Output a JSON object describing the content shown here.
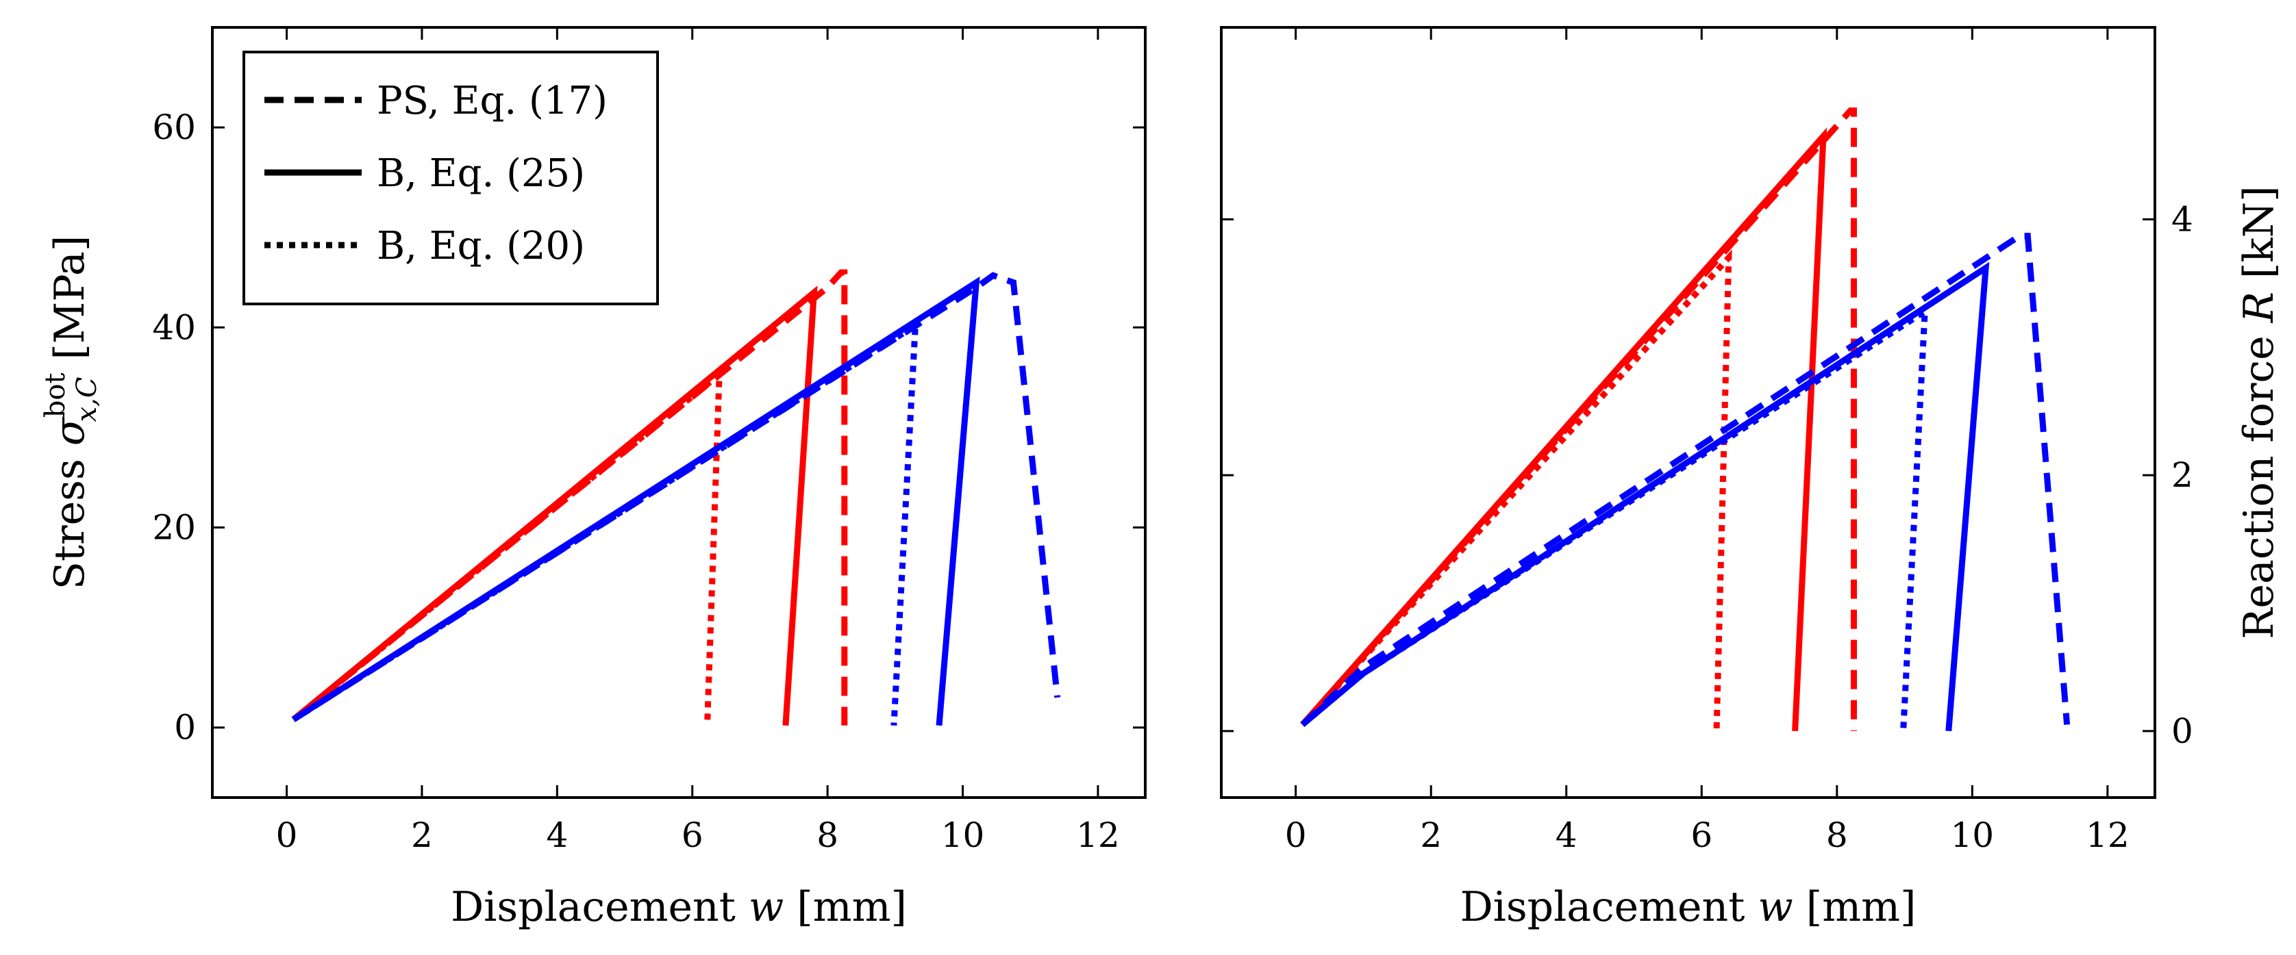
{
  "chart_data": [
    {
      "type": "line",
      "panel": "left",
      "xlabel": "Displacement w [mm]",
      "ylabel": "Stress σ_{x,C}^{bot} [MPa]",
      "ylabel_parts": {
        "prefix": "Stress ",
        "symbol": "σ",
        "sub": "x,C",
        "sup": "bot",
        "suffix": " [MPa]"
      },
      "xlabel_parts": {
        "prefix": "Displacement ",
        "symbol": "w",
        "suffix": " [mm]"
      },
      "xlim": [
        -1.1,
        12.7
      ],
      "ylim": [
        -7,
        70
      ],
      "xticks": [
        0,
        2,
        4,
        6,
        8,
        10,
        12
      ],
      "yticks": [
        0,
        20,
        40,
        60
      ],
      "legend": {
        "position": "top-left",
        "entries": [
          {
            "label": "PS, Eq. (17)",
            "style": "dashed"
          },
          {
            "label": "B, Eq. (25)",
            "style": "solid"
          },
          {
            "label": "B, Eq. (20)",
            "style": "dotted"
          }
        ]
      },
      "series": [
        {
          "name": "PS, Eq. (17) red",
          "color": "#ff0000",
          "style": "dashed",
          "points": [
            [
              0.1,
              0.8
            ],
            [
              8.0,
              44.0
            ],
            [
              8.2,
              45.5
            ],
            [
              8.25,
              45.5
            ],
            [
              8.25,
              0.2
            ]
          ]
        },
        {
          "name": "B, Eq. (25) red",
          "color": "#ff0000",
          "style": "solid",
          "points": [
            [
              0.1,
              0.8
            ],
            [
              7.8,
              43.5
            ],
            [
              7.38,
              0.2
            ]
          ]
        },
        {
          "name": "B, Eq. (20) red",
          "color": "#ff0000",
          "style": "dotted",
          "points": [
            [
              0.1,
              0.8
            ],
            [
              6.4,
              35.3
            ],
            [
              6.22,
              0.2
            ]
          ]
        },
        {
          "name": "PS, Eq. (17) blue",
          "color": "#0000ff",
          "style": "dashed",
          "points": [
            [
              0.1,
              0.8
            ],
            [
              10.2,
              44.0
            ],
            [
              10.45,
              45.2
            ],
            [
              10.75,
              44.5
            ],
            [
              11.4,
              3.0
            ]
          ]
        },
        {
          "name": "B, Eq. (25) blue",
          "color": "#0000ff",
          "style": "solid",
          "points": [
            [
              0.1,
              0.8
            ],
            [
              10.2,
              44.5
            ],
            [
              9.65,
              0.2
            ]
          ]
        },
        {
          "name": "B, Eq. (20) blue",
          "color": "#0000ff",
          "style": "dotted",
          "points": [
            [
              0.1,
              0.8
            ],
            [
              9.3,
              40.2
            ],
            [
              8.98,
              0.2
            ]
          ]
        }
      ]
    },
    {
      "type": "line",
      "panel": "right",
      "xlabel": "Displacement w [mm]",
      "ylabel": "Reaction force R [kN]",
      "ylabel_parts": {
        "prefix": "Reaction force ",
        "symbol": "R",
        "suffix": " [kN]"
      },
      "xlabel_parts": {
        "prefix": "Displacement ",
        "symbol": "w",
        "suffix": " [mm]"
      },
      "y_axis_side": "right",
      "xlim": [
        -1.1,
        12.7
      ],
      "ylim": [
        -0.52,
        5.5
      ],
      "xticks": [
        0,
        2,
        4,
        6,
        8,
        10,
        12
      ],
      "yticks": [
        0,
        2,
        4
      ],
      "series": [
        {
          "name": "PS, Eq. (17) red",
          "color": "#ff0000",
          "style": "dashed",
          "points": [
            [
              0.1,
              0.05
            ],
            [
              8.2,
              4.85
            ],
            [
              8.25,
              4.85
            ],
            [
              8.25,
              0.0
            ]
          ]
        },
        {
          "name": "B, Eq. (25) red",
          "color": "#ff0000",
          "style": "solid",
          "points": [
            [
              0.1,
              0.05
            ],
            [
              7.8,
              4.65
            ],
            [
              7.38,
              0.0
            ]
          ]
        },
        {
          "name": "B, Eq. (20) red",
          "color": "#ff0000",
          "style": "dotted",
          "points": [
            [
              0.1,
              0.05
            ],
            [
              6.4,
              3.7
            ],
            [
              6.22,
              0.0
            ]
          ]
        },
        {
          "name": "PS, Eq. (17) blue",
          "color": "#0000ff",
          "style": "dashed",
          "points": [
            [
              0.1,
              0.05
            ],
            [
              1.0,
              0.5
            ],
            [
              10.7,
              3.87
            ],
            [
              10.82,
              3.87
            ],
            [
              11.4,
              0.05
            ]
          ]
        },
        {
          "name": "B, Eq. (25) blue",
          "color": "#0000ff",
          "style": "solid",
          "points": [
            [
              0.1,
              0.05
            ],
            [
              1.0,
              0.45
            ],
            [
              10.2,
              3.62
            ],
            [
              9.65,
              0.0
            ]
          ]
        },
        {
          "name": "B, Eq. (20) blue",
          "color": "#0000ff",
          "style": "dotted",
          "points": [
            [
              0.1,
              0.05
            ],
            [
              1.0,
              0.45
            ],
            [
              9.3,
              3.28
            ],
            [
              8.98,
              0.0
            ]
          ]
        }
      ]
    }
  ]
}
